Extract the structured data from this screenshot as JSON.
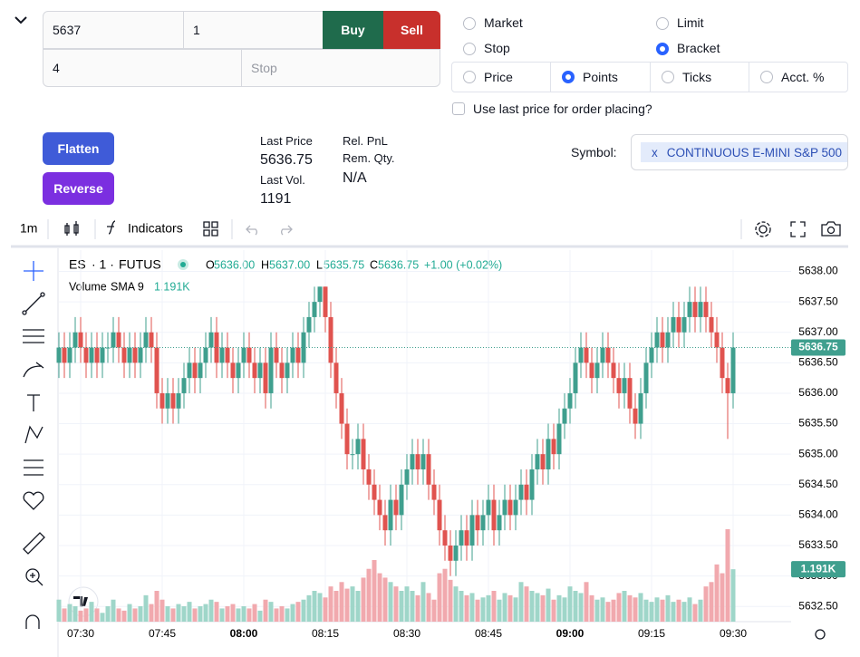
{
  "order": {
    "price": "5637",
    "qty": "1",
    "buy": "Buy",
    "sell": "Sell",
    "offset": "4",
    "stop_placeholder": "Stop",
    "order_types": [
      "Market",
      "Limit",
      "Stop",
      "Bracket"
    ],
    "selected_order_type": "Bracket",
    "units": [
      "Price",
      "Points",
      "Ticks",
      "Acct. %"
    ],
    "selected_unit": "Points",
    "use_last_price": "Use last price for order placing?"
  },
  "actions": {
    "flatten": "Flatten",
    "reverse": "Reverse"
  },
  "stats": {
    "last_price_label": "Last Price",
    "last_price": "5636.75",
    "last_vol_label": "Last Vol.",
    "last_vol": "1191",
    "rel_pnl_label": "Rel. PnL",
    "rem_qty_label": "Rem. Qty.",
    "na": "N/A"
  },
  "symbol": {
    "label": "Symbol:",
    "chip_x": "x",
    "value": "CONTINUOUS E-MINI S&P 500"
  },
  "toolbar": {
    "interval": "1m",
    "indicators": "Indicators"
  },
  "chart_data": {
    "type": "candlestick",
    "legend": {
      "symbol": "ES",
      "interval": "· 1 ·",
      "exchange": "FUTUS",
      "o_label": "O",
      "o": "5636.00",
      "h_label": "H",
      "h": "5637.00",
      "l_label": "L",
      "l": "5635.75",
      "c_label": "C",
      "c": "5636.75",
      "change": "+1.00 (+0.02%)",
      "volume_label": "Volume",
      "sma": "SMA 9",
      "volume_value": "1.191K"
    },
    "ylim": [
      5632.25,
      5638.35
    ],
    "yticks": [
      {
        "value": 5638,
        "label": "5638.00"
      },
      {
        "value": 5637.5,
        "label": "5637.50"
      },
      {
        "value": 5637,
        "label": "5637.00"
      },
      {
        "value": 5636.5,
        "label": "5636.50"
      },
      {
        "value": 5636,
        "label": "5636.00"
      },
      {
        "value": 5635.5,
        "label": "5635.50"
      },
      {
        "value": 5635,
        "label": "5635.00"
      },
      {
        "value": 5634.5,
        "label": "5634.50"
      },
      {
        "value": 5634,
        "label": "5634.00"
      },
      {
        "value": 5633.5,
        "label": "5633.50"
      },
      {
        "value": 5633,
        "label": "5633.00"
      },
      {
        "value": 5632.5,
        "label": "5632.50"
      }
    ],
    "last_price": {
      "value": 5636.75,
      "label": "5636.75"
    },
    "last_volume": {
      "value": 1191,
      "label": "1.191K"
    },
    "up_color": "#3f9f8e",
    "down_color": "#e0534f",
    "up_volume_color": "#9fd6c9",
    "down_volume_color": "#f1a9ae",
    "grid": true,
    "categories": [
      null,
      null,
      null,
      null,
      "07:30",
      null,
      null,
      null,
      null,
      null,
      null,
      null,
      null,
      null,
      null,
      null,
      null,
      null,
      null,
      "07:45",
      null,
      null,
      null,
      null,
      null,
      null,
      null,
      null,
      null,
      null,
      null,
      null,
      null,
      null,
      "08:00",
      null,
      null,
      null,
      null,
      null,
      null,
      null,
      null,
      null,
      null,
      null,
      null,
      null,
      null,
      "08:15",
      null,
      null,
      null,
      null,
      null,
      null,
      null,
      null,
      null,
      null,
      null,
      null,
      null,
      null,
      "08:30",
      null,
      null,
      null,
      null,
      null,
      null,
      null,
      null,
      null,
      null,
      null,
      null,
      null,
      null,
      "08:45",
      null,
      null,
      null,
      null,
      null,
      null,
      null,
      null,
      null,
      null,
      null,
      null,
      null,
      null,
      "09:00",
      null,
      null,
      null,
      null,
      null,
      null,
      null,
      null,
      null,
      null,
      null,
      null,
      null,
      null,
      "09:15",
      null,
      null,
      null,
      null,
      null,
      null,
      null,
      null,
      null,
      null,
      null,
      null,
      null,
      null,
      "09:30"
    ],
    "candles": [
      [
        5636.5,
        5637,
        5636.25,
        5636.75
      ],
      [
        5636.75,
        5637,
        5636.25,
        5636.5
      ],
      [
        5636.5,
        5637,
        5636.25,
        5636.75
      ],
      [
        5636.75,
        5637.25,
        5636.5,
        5637
      ],
      [
        5637,
        5637.25,
        5636.5,
        5636.75
      ],
      [
        5636.75,
        5637,
        5636.25,
        5636.5
      ],
      [
        5636.5,
        5637,
        5636.25,
        5636.75
      ],
      [
        5636.75,
        5637,
        5636.25,
        5636.5
      ],
      [
        5636.5,
        5637,
        5636.25,
        5636.75
      ],
      [
        5636.75,
        5637,
        5636.5,
        5636.75
      ],
      [
        5636.75,
        5637.25,
        5636.5,
        5637
      ],
      [
        5637,
        5637.25,
        5636.5,
        5636.75
      ],
      [
        5636.75,
        5637,
        5636.25,
        5636.5
      ],
      [
        5636.5,
        5637,
        5636.25,
        5636.75
      ],
      [
        5636.75,
        5637,
        5636.25,
        5636.5
      ],
      [
        5636.5,
        5637,
        5636.25,
        5636.75
      ],
      [
        5636.75,
        5637.25,
        5636.5,
        5637
      ],
      [
        5637,
        5637.25,
        5636.5,
        5636.75
      ],
      [
        5636.75,
        5637,
        5635.75,
        5636
      ],
      [
        5636,
        5636.25,
        5635.5,
        5635.75
      ],
      [
        5635.75,
        5636.25,
        5635.5,
        5636
      ],
      [
        5636,
        5636.25,
        5635.5,
        5635.75
      ],
      [
        5635.75,
        5636.25,
        5635.5,
        5636
      ],
      [
        5636,
        5636.5,
        5635.75,
        5636.25
      ],
      [
        5636.25,
        5636.75,
        5636,
        5636.5
      ],
      [
        5636.5,
        5636.75,
        5636,
        5636.25
      ],
      [
        5636.25,
        5636.75,
        5636,
        5636.5
      ],
      [
        5636.5,
        5637,
        5636.25,
        5636.75
      ],
      [
        5636.75,
        5637.25,
        5636.5,
        5637
      ],
      [
        5637,
        5637.25,
        5636.25,
        5636.5
      ],
      [
        5636.5,
        5637,
        5636.25,
        5636.75
      ],
      [
        5636.75,
        5637,
        5636.25,
        5636.5
      ],
      [
        5636.5,
        5636.75,
        5636,
        5636.25
      ],
      [
        5636.25,
        5636.75,
        5636,
        5636.5
      ],
      [
        5636.5,
        5637,
        5636.25,
        5636.75
      ],
      [
        5636.75,
        5637,
        5636.25,
        5636.5
      ],
      [
        5636.5,
        5636.75,
        5636,
        5636.25
      ],
      [
        5636.25,
        5636.75,
        5636,
        5636.5
      ],
      [
        5636.5,
        5636.75,
        5635.75,
        5636
      ],
      [
        5636,
        5637,
        5635.75,
        5636.75
      ],
      [
        5636.75,
        5637,
        5636.25,
        5636.5
      ],
      [
        5636.5,
        5636.75,
        5636,
        5636.25
      ],
      [
        5636.25,
        5636.75,
        5636,
        5636.5
      ],
      [
        5636.5,
        5637,
        5636.25,
        5636.75
      ],
      [
        5636.75,
        5637,
        5636.25,
        5636.5
      ],
      [
        5636.5,
        5637.25,
        5636.25,
        5637
      ],
      [
        5637,
        5637.5,
        5636.75,
        5637.25
      ],
      [
        5637.25,
        5637.75,
        5637,
        5637.5
      ],
      [
        5637.5,
        5637.75,
        5637.25,
        5637.75
      ],
      [
        5637.75,
        5637.75,
        5637,
        5637.25
      ],
      [
        5637.25,
        5637.5,
        5636.25,
        5636.5
      ],
      [
        5636.5,
        5636.75,
        5635.75,
        5636
      ],
      [
        5636,
        5636.25,
        5635.25,
        5635.5
      ],
      [
        5635.5,
        5635.75,
        5634.75,
        5635
      ],
      [
        5635,
        5635.25,
        5634.75,
        5635
      ],
      [
        5635,
        5635.5,
        5634.75,
        5635.25
      ],
      [
        5635.25,
        5635.5,
        5634.5,
        5634.75
      ],
      [
        5634.75,
        5635,
        5634.25,
        5634.5
      ],
      [
        5634.5,
        5634.75,
        5634,
        5634.25
      ],
      [
        5634.25,
        5634.5,
        5633.75,
        5634
      ],
      [
        5634,
        5634.25,
        5633.5,
        5633.75
      ],
      [
        5633.75,
        5634.5,
        5633.5,
        5634.25
      ],
      [
        5634.25,
        5634.5,
        5633.75,
        5634
      ],
      [
        5634,
        5634.75,
        5633.75,
        5634.5
      ],
      [
        5634.5,
        5635,
        5634.25,
        5634.75
      ],
      [
        5634.75,
        5635.25,
        5634.5,
        5635
      ],
      [
        5635,
        5635.25,
        5634.5,
        5634.75
      ],
      [
        5634.75,
        5635.25,
        5634.5,
        5635
      ],
      [
        5635,
        5635.25,
        5634.25,
        5634.5
      ],
      [
        5634.5,
        5634.75,
        5634,
        5634.25
      ],
      [
        5634.25,
        5634.5,
        5633.5,
        5633.75
      ],
      [
        5633.75,
        5634,
        5633.25,
        5633.5
      ],
      [
        5633.5,
        5633.75,
        5633,
        5633.25
      ],
      [
        5633.25,
        5633.75,
        5633,
        5633.5
      ],
      [
        5633.5,
        5634,
        5633.25,
        5633.75
      ],
      [
        5633.75,
        5634,
        5633.25,
        5633.5
      ],
      [
        5633.5,
        5634.25,
        5633.25,
        5634
      ],
      [
        5634,
        5634.25,
        5633.5,
        5633.75
      ],
      [
        5633.75,
        5634.25,
        5633.5,
        5634
      ],
      [
        5634,
        5634.5,
        5633.75,
        5634.25
      ],
      [
        5634.25,
        5634.5,
        5633.5,
        5633.75
      ],
      [
        5633.75,
        5634.25,
        5633.5,
        5634
      ],
      [
        5634,
        5634.5,
        5633.75,
        5634.25
      ],
      [
        5634.25,
        5634.5,
        5633.75,
        5634
      ],
      [
        5634,
        5634.5,
        5633.75,
        5634.25
      ],
      [
        5634.25,
        5634.75,
        5634,
        5634.5
      ],
      [
        5634.5,
        5634.75,
        5634,
        5634.25
      ],
      [
        5634.25,
        5635,
        5634,
        5634.75
      ],
      [
        5634.75,
        5635.25,
        5634.5,
        5635
      ],
      [
        5635,
        5635.25,
        5634.5,
        5634.75
      ],
      [
        5634.75,
        5635.5,
        5634.5,
        5635.25
      ],
      [
        5635.25,
        5635.5,
        5634.75,
        5635
      ],
      [
        5635,
        5635.75,
        5634.75,
        5635.5
      ],
      [
        5635.5,
        5636,
        5635.25,
        5635.75
      ],
      [
        5635.75,
        5636.25,
        5635.5,
        5636
      ],
      [
        5636,
        5636.75,
        5635.75,
        5636.5
      ],
      [
        5636.5,
        5637,
        5636.25,
        5636.75
      ],
      [
        5636.75,
        5637,
        5636.25,
        5636.5
      ],
      [
        5636.5,
        5636.75,
        5636,
        5636.25
      ],
      [
        5636.25,
        5636.75,
        5636,
        5636.5
      ],
      [
        5636.5,
        5637,
        5636.25,
        5636.75
      ],
      [
        5636.75,
        5637,
        5636.25,
        5636.5
      ],
      [
        5636.5,
        5636.75,
        5636,
        5636.25
      ],
      [
        5636.25,
        5636.5,
        5635.75,
        5636
      ],
      [
        5636,
        5636.5,
        5635.75,
        5636.25
      ],
      [
        5636.25,
        5636.5,
        5635.5,
        5635.75
      ],
      [
        5635.75,
        5636,
        5635.25,
        5635.5
      ],
      [
        5635.5,
        5636.25,
        5635.25,
        5636
      ],
      [
        5636,
        5636.75,
        5635.75,
        5636.5
      ],
      [
        5636.5,
        5637,
        5636.25,
        5636.75
      ],
      [
        5636.75,
        5637.25,
        5636.5,
        5637
      ],
      [
        5637,
        5637.25,
        5636.5,
        5636.75
      ],
      [
        5636.75,
        5637.25,
        5636.5,
        5637
      ],
      [
        5637,
        5637.5,
        5636.75,
        5637.25
      ],
      [
        5637.25,
        5637.5,
        5636.75,
        5637
      ],
      [
        5637,
        5637.5,
        5636.75,
        5637.25
      ],
      [
        5637.25,
        5637.75,
        5637,
        5637.5
      ],
      [
        5637.5,
        5637.75,
        5637,
        5637.25
      ],
      [
        5637.25,
        5637.75,
        5637,
        5637.5
      ],
      [
        5637.5,
        5637.75,
        5637,
        5637.25
      ],
      [
        5637.25,
        5637.5,
        5636.75,
        5637
      ],
      [
        5637,
        5637.25,
        5636.5,
        5636.75
      ],
      [
        5636.75,
        5637,
        5636,
        5636.25
      ],
      [
        5636.25,
        5636.5,
        5635.25,
        5636
      ],
      [
        5636,
        5637,
        5635.75,
        5636.75
      ]
    ],
    "volumes": [
      500,
      300,
      400,
      350,
      250,
      300,
      450,
      300,
      200,
      350,
      500,
      300,
      250,
      400,
      300,
      350,
      600,
      400,
      700,
      500,
      350,
      300,
      400,
      350,
      450,
      300,
      350,
      400,
      500,
      450,
      300,
      350,
      400,
      300,
      350,
      300,
      400,
      250,
      500,
      450,
      300,
      350,
      300,
      400,
      450,
      500,
      600,
      700,
      650,
      550,
      800,
      700,
      900,
      750,
      800,
      700,
      1000,
      1200,
      1400,
      1100,
      1000,
      900,
      800,
      700,
      800,
      700,
      600,
      900,
      650,
      500,
      1100,
      1200,
      950,
      800,
      700,
      600,
      650,
      500,
      550,
      600,
      700,
      500,
      650,
      600,
      550,
      900,
      800,
      700,
      650,
      600,
      750,
      500,
      600,
      550,
      800,
      700,
      650,
      900,
      600,
      500,
      550,
      450,
      500,
      650,
      700,
      600,
      550,
      650,
      500,
      450,
      550,
      500,
      600,
      450,
      500,
      450,
      550,
      400,
      500,
      800,
      900,
      1300,
      1100,
      2100,
      1191
    ]
  }
}
